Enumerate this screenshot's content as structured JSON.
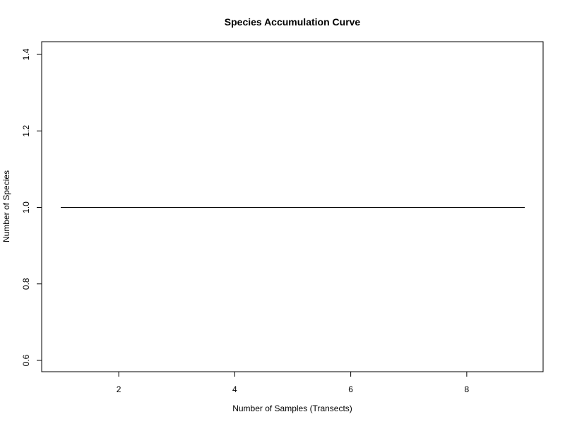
{
  "chart_data": {
    "type": "line",
    "title": "Species Accumulation Curve",
    "xlabel": "Number of Samples (Transects)",
    "ylabel": "Number of Species",
    "xlim": [
      1,
      9
    ],
    "ylim": [
      0.6,
      1.4
    ],
    "x_ticks": [
      2,
      4,
      6,
      8
    ],
    "y_ticks": [
      0.6,
      0.8,
      1.0,
      1.2,
      1.4
    ],
    "y_tick_labels": [
      "0.6",
      "0.8",
      "1.0",
      "1.2",
      "1.4"
    ],
    "series": [
      {
        "x": [
          1,
          2,
          3,
          4,
          5,
          6,
          7,
          8,
          9
        ],
        "values": [
          1,
          1,
          1,
          1,
          1,
          1,
          1,
          1,
          1
        ],
        "color": "#000000"
      }
    ],
    "grid": false,
    "legend": "none"
  }
}
